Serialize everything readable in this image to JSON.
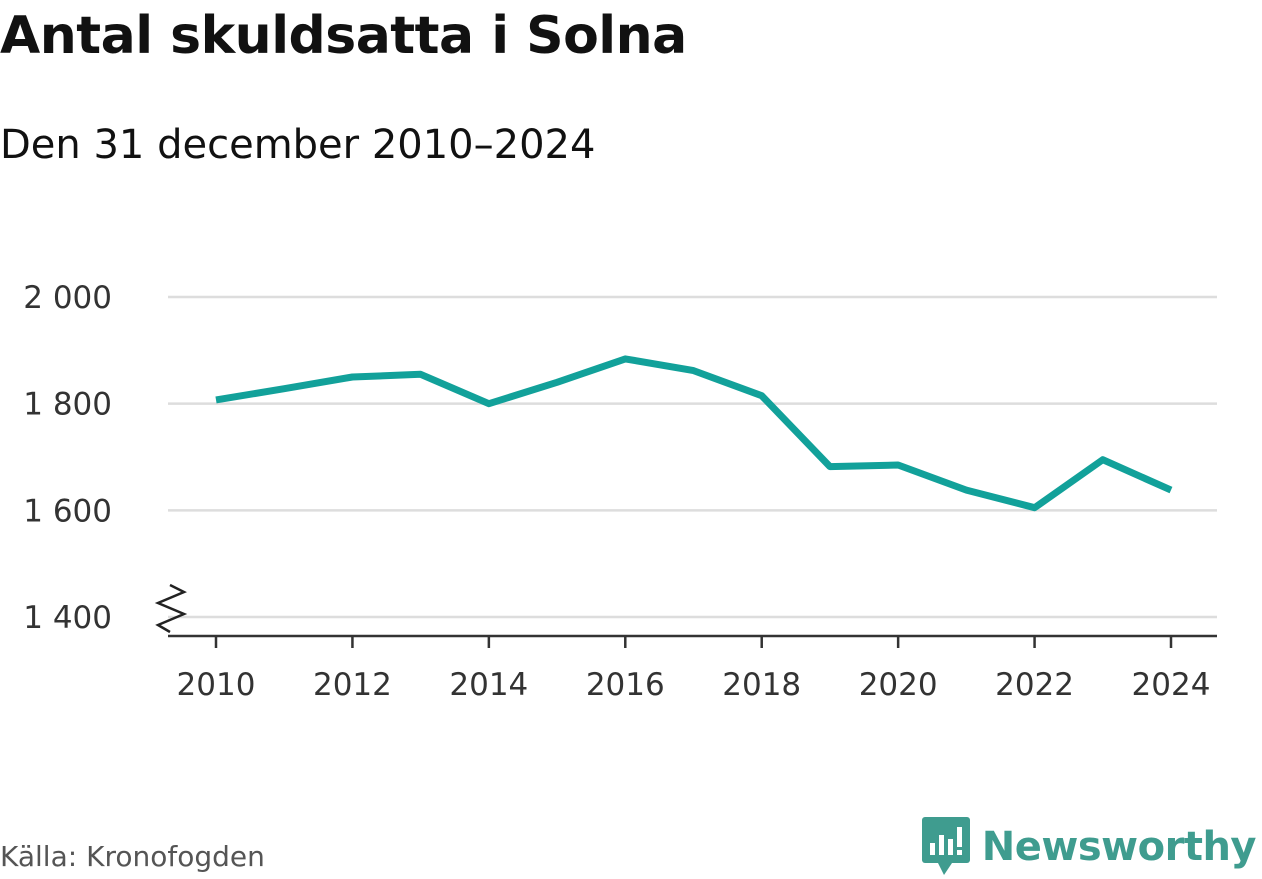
{
  "title": "Antal skuldsatta i Solna",
  "subtitle": "Den 31 december 2010–2024",
  "source": "Källa: Kronofogden",
  "brand": {
    "name": "Newsworthy",
    "icon": "newsworthy-logo-icon",
    "color": "#3f9c8f"
  },
  "colors": {
    "line": "#12a19a",
    "grid": "#dddddd",
    "axis": "#333333",
    "text": "#111111"
  },
  "chart_data": {
    "type": "line",
    "title": "Antal skuldsatta i Solna",
    "subtitle": "Den 31 december 2010–2024",
    "xlabel": "",
    "ylabel": "",
    "x": [
      2010,
      2011,
      2012,
      2013,
      2014,
      2015,
      2016,
      2017,
      2018,
      2019,
      2020,
      2021,
      2022,
      2023,
      2024
    ],
    "series": [
      {
        "name": "Antal skuldsatta",
        "values": [
          1807,
          1828,
          1850,
          1855,
          1800,
          1840,
          1884,
          1862,
          1815,
          1682,
          1685,
          1638,
          1605,
          1695,
          1638
        ]
      }
    ],
    "ylim": [
      1400,
      2000
    ],
    "y_ticks": [
      1400,
      1600,
      1800,
      2000
    ],
    "y_tick_labels": [
      "1 400",
      "1 600",
      "1 800",
      "2 000"
    ],
    "x_ticks": [
      2010,
      2012,
      2014,
      2016,
      2018,
      2020,
      2022,
      2024
    ],
    "x_tick_labels": [
      "2010",
      "2012",
      "2014",
      "2016",
      "2018",
      "2020",
      "2022",
      "2024"
    ],
    "axis_break": true,
    "grid": true,
    "legend": "none"
  }
}
